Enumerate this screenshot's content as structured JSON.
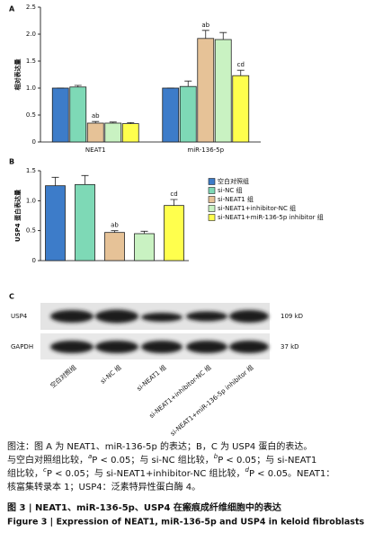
{
  "chart_data": [
    {
      "type": "bar",
      "panel": "A",
      "y_label": "相对表达量",
      "categories": [
        "NEAT1",
        "miR-136-5p"
      ],
      "ylim": [
        0,
        2.5
      ],
      "yticks": [
        0,
        0.5,
        {
          "value": 1,
          "label": "1.0"
        },
        1.5,
        {
          "value": 2,
          "label": "2.0"
        },
        2.5
      ],
      "series": [
        {
          "color": "#3d7cc9",
          "values": [
            1.0,
            1.0
          ],
          "errors": [
            0.0,
            0.0
          ],
          "significance": [
            null,
            null
          ]
        },
        {
          "color": "#7ed9b6",
          "values": [
            1.02,
            1.03
          ],
          "errors": [
            0.03,
            0.1
          ],
          "significance": [
            null,
            null
          ]
        },
        {
          "color": "#e6c297",
          "values": [
            0.35,
            1.92
          ],
          "errors": [
            0.03,
            0.15
          ],
          "significance": [
            "ab",
            "ab"
          ]
        },
        {
          "color": "#c9f2c2",
          "values": [
            0.35,
            1.9
          ],
          "errors": [
            0.02,
            0.13
          ],
          "significance": [
            null,
            null
          ]
        },
        {
          "color": "#ffff4d",
          "values": [
            0.34,
            1.23
          ],
          "errors": [
            0.02,
            0.1
          ],
          "significance": [
            null,
            "cd"
          ]
        }
      ]
    },
    {
      "type": "bar",
      "panel": "B",
      "y_label": "USP4 蛋白表达量",
      "legend": true,
      "categories": [
        null
      ],
      "ylim": [
        0,
        1.5
      ],
      "yticks": [
        0,
        0.5,
        {
          "value": 1,
          "label": "1.0"
        },
        1.5
      ],
      "series": [
        {
          "name": "空白对照组",
          "color": "#3d7cc9",
          "values": [
            1.25
          ],
          "errors": [
            0.14
          ],
          "significance": [
            null
          ]
        },
        {
          "name": "si-NC 组",
          "color": "#7ed9b6",
          "values": [
            1.27
          ],
          "errors": [
            0.15
          ],
          "significance": [
            null
          ]
        },
        {
          "name": "si-NEAT1 组",
          "color": "#e6c297",
          "values": [
            0.47
          ],
          "errors": [
            0.03
          ],
          "significance": [
            "ab"
          ]
        },
        {
          "name": "si-NEAT1+inhibitor-NC 组",
          "color": "#c9f2c2",
          "values": [
            0.45
          ],
          "errors": [
            0.04
          ],
          "significance": [
            null
          ]
        },
        {
          "name": "si-NEAT1+miR-136-5p inhibitor 组",
          "color": "#ffff4d",
          "values": [
            0.92
          ],
          "errors": [
            0.1
          ],
          "significance": [
            "cd"
          ]
        }
      ]
    }
  ],
  "panel_c": {
    "label": "C",
    "rows": [
      {
        "name": "USP4",
        "size": "109 kD"
      },
      {
        "name": "GAPDH",
        "size": "37 kD"
      }
    ],
    "lanes": [
      "空白对照组",
      "si-NC 组",
      "si-NEAT1 组",
      "si-NEAT1+inhibitor-NC 组",
      "si-NEAT1+miR-136-5p inhibitor 组"
    ]
  },
  "caption": {
    "lines": [
      [
        "图注：图 A 为 NEAT1、miR-136-5p 的表达；B，C 为 USP4 蛋白的表达。"
      ],
      [
        "与空白对照组比较，",
        {
          "sup": "a"
        },
        "P < 0.05；与 si-NC 组比较，",
        {
          "sup": "b"
        },
        "P < 0.05；与 si-NEAT1"
      ],
      [
        "组比较，",
        {
          "sup": "c"
        },
        "P < 0.05；与 si-NEAT1+inhibitor-NC 组比较，",
        {
          "sup": "d"
        },
        "P < 0.05。NEAT1："
      ],
      [
        "核富集转录本 1；USP4：泛素特异性蛋白酶 4。"
      ]
    ],
    "title_cn": "图 3 | NEAT1、miR-136-5p、USP4 在瘢痕成纤维细胞中的表达",
    "title_en": "Figure 3 | Expression of NEAT1, miR-136-5p and USP4 in keloid fibroblasts"
  }
}
